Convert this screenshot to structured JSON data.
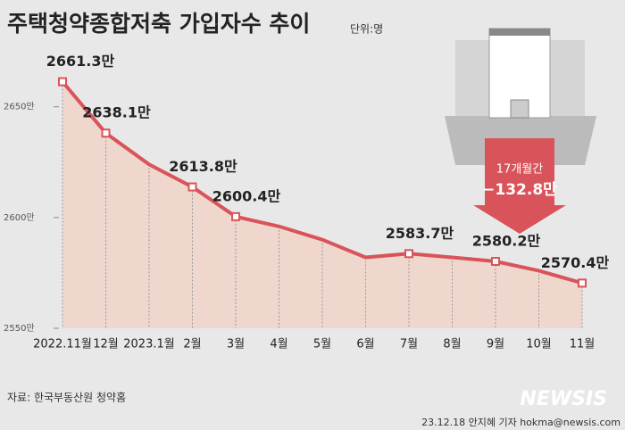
{
  "chart_data": {
    "type": "area",
    "title": "주택청약종합저축 가입자수 추이",
    "unit": "단위:명",
    "categories": [
      "2022.11월",
      "12월",
      "2023.1월",
      "2월",
      "3월",
      "4월",
      "5월",
      "6월",
      "7월",
      "8월",
      "9월",
      "10월",
      "11월"
    ],
    "values": [
      2661.3,
      2638.1,
      2624,
      2613.8,
      2600.4,
      2596,
      2590,
      2582,
      2583.7,
      2582,
      2580.2,
      2576,
      2570.4
    ],
    "value_labels": [
      "2661.3만",
      "2638.1만",
      null,
      "2613.8만",
      "2600.4만",
      null,
      null,
      null,
      "2583.7만",
      null,
      "2580.2만",
      null,
      "2570.4만"
    ],
    "color": "#d9545a",
    "ylim": [
      2550,
      2670
    ],
    "yticks": [
      {
        "value": 2550,
        "label": "2550만"
      },
      {
        "value": 2600,
        "label": "2600만"
      },
      {
        "value": 2650,
        "label": "2650만"
      }
    ],
    "annotation": [
      "17개월간",
      "−132.8만"
    ],
    "source": "자료: 한국부동산원 청약홈",
    "credit": "23.12.18 안지혜 기자 hokma@newsis.com",
    "logo": "NEWSIS"
  }
}
